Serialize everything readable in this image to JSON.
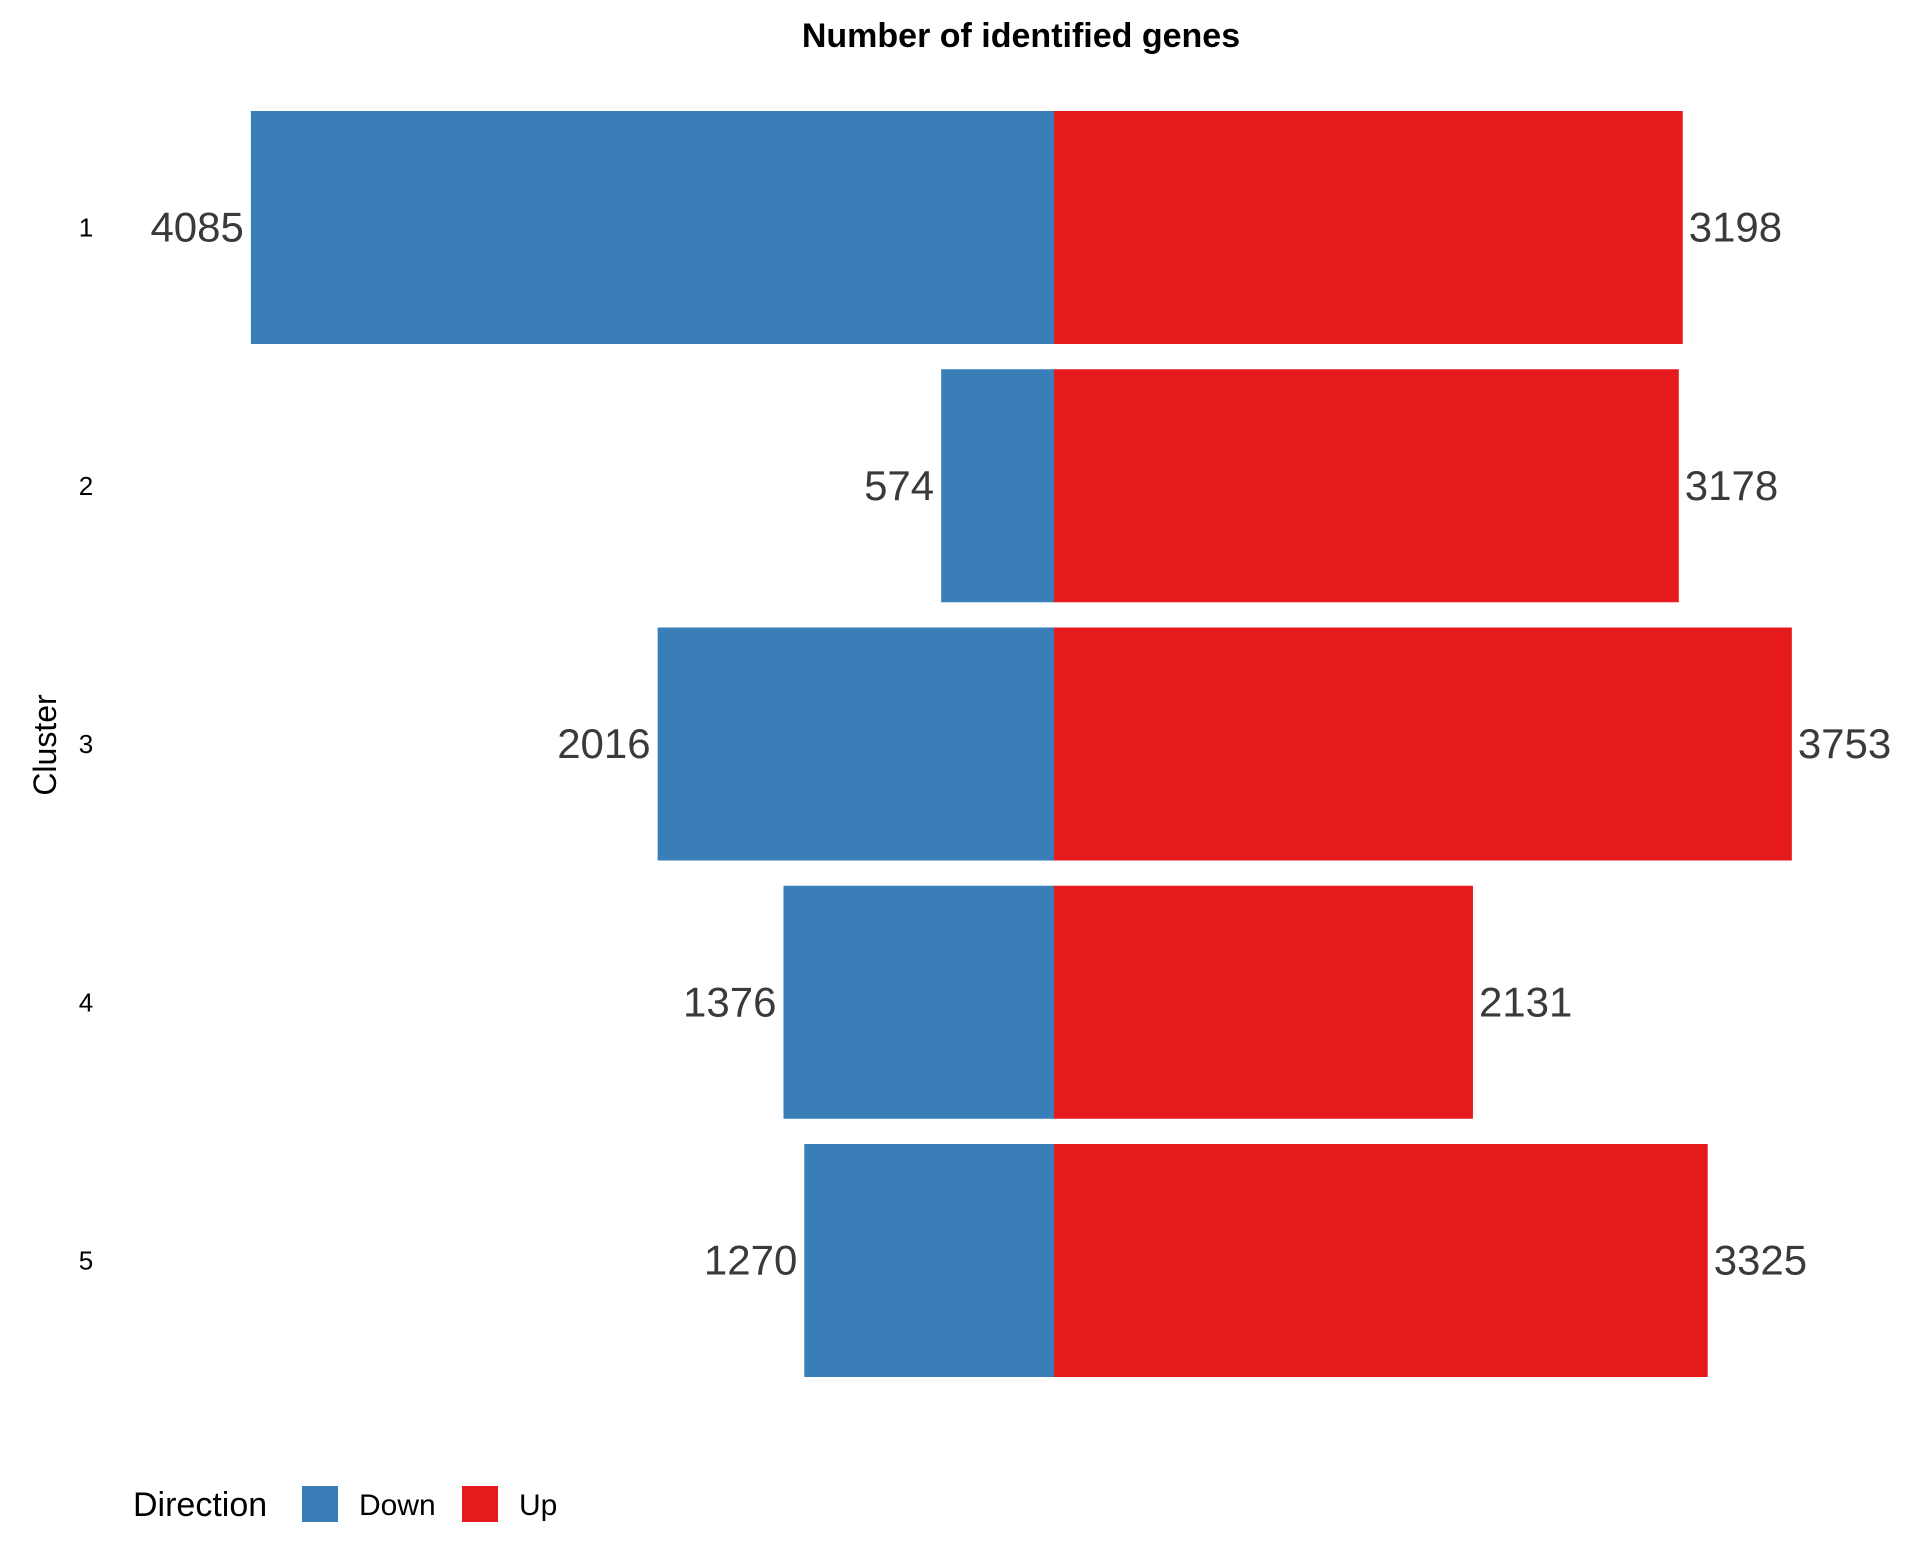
{
  "chart_data": {
    "type": "bar",
    "orientation": "horizontal",
    "layout": "diverging",
    "title": "Number of identified genes",
    "xlabel": "",
    "ylabel": "Cluster",
    "categories": [
      "1",
      "2",
      "3",
      "4",
      "5"
    ],
    "series": [
      {
        "name": "Down",
        "color": "#3A7EB8",
        "values": [
          4085,
          574,
          2016,
          1376,
          1270
        ],
        "direction": "left"
      },
      {
        "name": "Up",
        "color": "#E41A1C",
        "values": [
          3198,
          3178,
          3753,
          2131,
          3325
        ],
        "direction": "right"
      }
    ],
    "xlim": [
      -4085,
      3753
    ],
    "grid": false,
    "legend": {
      "title": "Direction",
      "placement": "bottom-left",
      "orientation": "horizontal"
    }
  }
}
